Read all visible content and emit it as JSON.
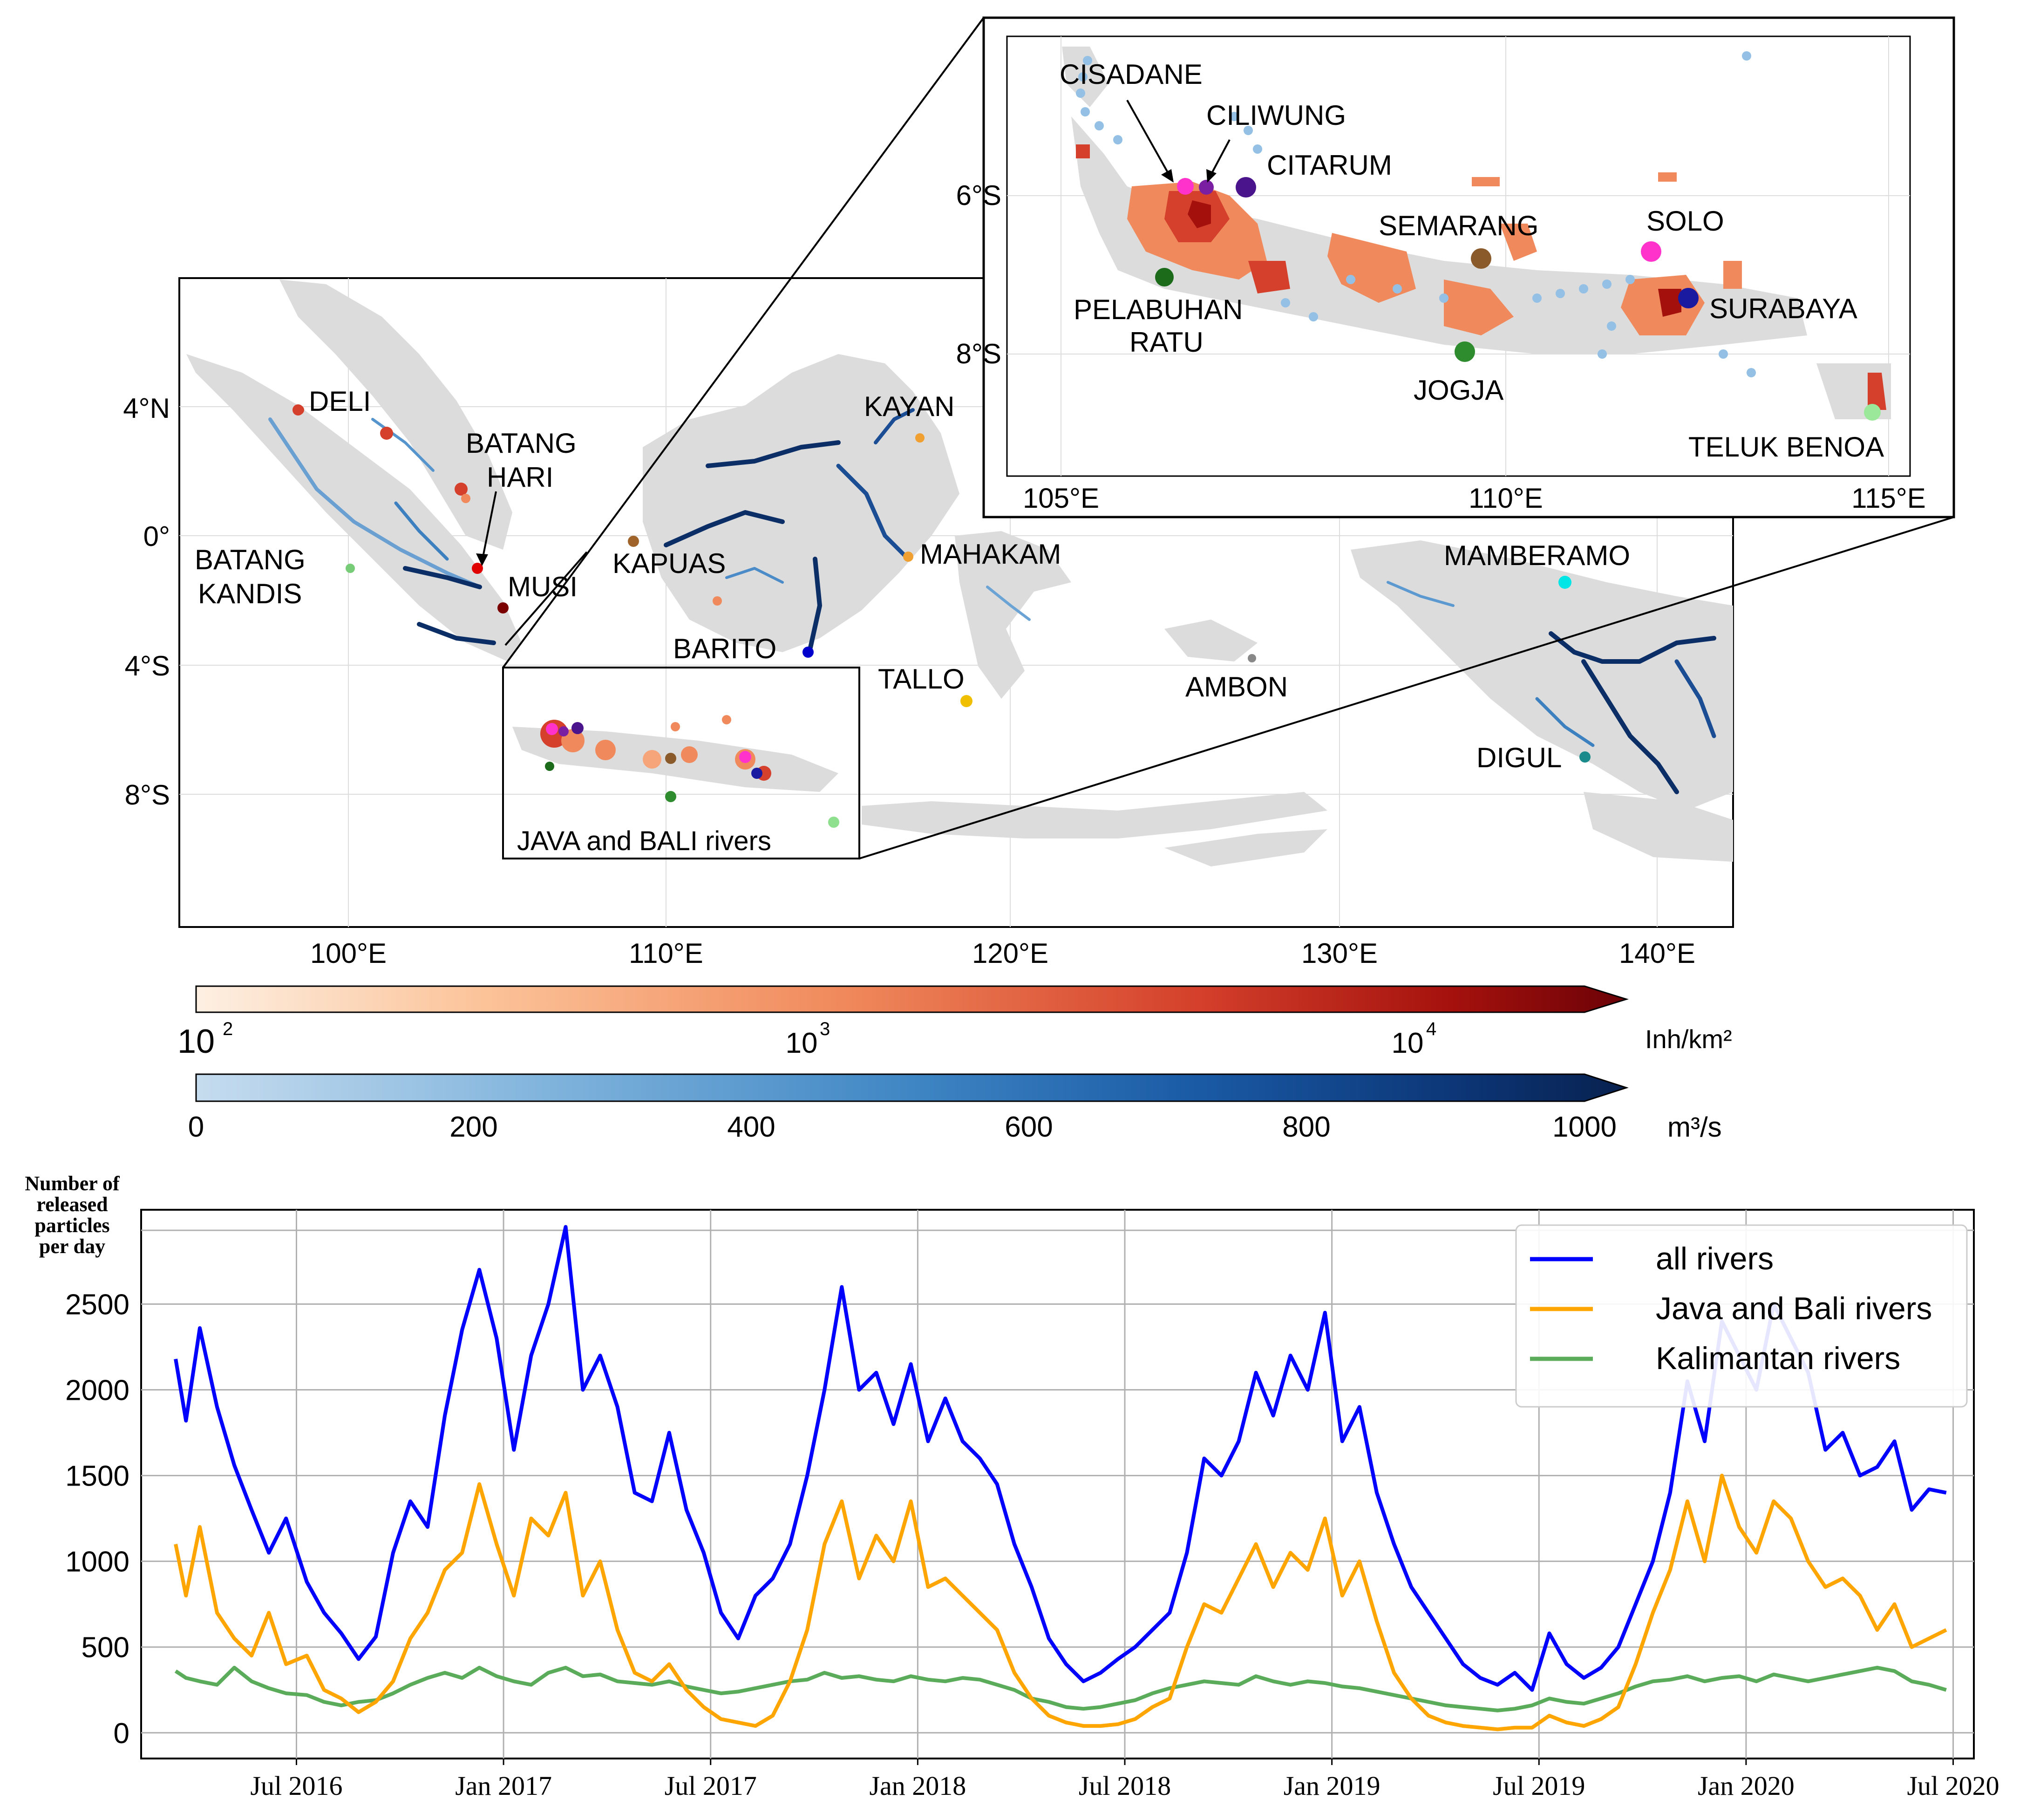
{
  "map": {
    "lat_ticks": [
      "4°N",
      "0°",
      "4°S",
      "8°S"
    ],
    "lon_ticks": [
      "100°E",
      "110°E",
      "120°E",
      "130°E",
      "140°E"
    ],
    "river_labels": [
      "DELI",
      "BATANG",
      "HARI",
      "BATANG",
      "KANDIS",
      "MUSI",
      "KAPUAS",
      "BARITO",
      "KAYAN",
      "MAHAKAM",
      "TALLO",
      "AMBON",
      "MAMBERAMO",
      "DIGUL"
    ],
    "box_label": "JAVA and BALI rivers"
  },
  "inset": {
    "lat_ticks": [
      "6°S",
      "8°S"
    ],
    "lon_ticks": [
      "105°E",
      "110°E",
      "115°E"
    ],
    "labels": [
      "CISADANE",
      "CILIWUNG",
      "CITARUM",
      "SEMARANG",
      "SOLO",
      "PELABUHAN",
      "RATU",
      "SURABAYA",
      "JOGJA",
      "TELUK BENOA"
    ]
  },
  "colorbars": {
    "population": {
      "ticks": [
        "10",
        "10",
        "10"
      ],
      "exps": [
        "2",
        "3",
        "4"
      ],
      "unit": "Inh/km²",
      "colors": [
        "#fdf0e3",
        "#fcc399",
        "#f08a5c",
        "#d4402b",
        "#a4110d",
        "#6b0207"
      ]
    },
    "discharge": {
      "ticks": [
        "0",
        "200",
        "400",
        "600",
        "800",
        "1000"
      ],
      "unit": "m³/s",
      "colors": [
        "#c6dcef",
        "#7fb3dc",
        "#3f86c4",
        "#1a5aa5",
        "#0c3677",
        "#08214f"
      ]
    }
  },
  "chart_data": {
    "type": "line",
    "ylabel": "Number of released particles per day",
    "x_ticks": [
      "Jul 2016",
      "Jan 2017",
      "Jul 2017",
      "Jan 2018",
      "Jul 2018",
      "Jan 2019",
      "Jul 2019",
      "Jan 2020",
      "Jul 2020"
    ],
    "y_ticks": [
      "0",
      "500",
      "1000",
      "1500",
      "2000",
      "2500"
    ],
    "ylim": [
      -150,
      3050
    ],
    "xlim_months": [
      -4.5,
      48.6
    ],
    "legend_position": "top-right",
    "grid": true,
    "series": [
      {
        "name": "all rivers",
        "color": "#0000ff",
        "x_months": [
          -3.5,
          -3.2,
          -2.8,
          -2.3,
          -1.8,
          -1.3,
          -0.8,
          -0.3,
          0.3,
          0.8,
          1.3,
          1.8,
          2.3,
          2.8,
          3.3,
          3.8,
          4.3,
          4.8,
          5.3,
          5.8,
          6.3,
          6.8,
          7.3,
          7.8,
          8.3,
          8.8,
          9.3,
          9.8,
          10.3,
          10.8,
          11.3,
          11.8,
          12.3,
          12.8,
          13.3,
          13.8,
          14.3,
          14.8,
          15.3,
          15.8,
          16.3,
          16.8,
          17.3,
          17.8,
          18.3,
          18.8,
          19.3,
          19.8,
          20.3,
          20.8,
          21.3,
          21.8,
          22.3,
          22.8,
          23.3,
          23.8,
          24.3,
          24.8,
          25.3,
          25.8,
          26.3,
          26.8,
          27.3,
          27.8,
          28.3,
          28.8,
          29.3,
          29.8,
          30.3,
          30.8,
          31.3,
          31.8,
          32.3,
          32.8,
          33.3,
          33.8,
          34.3,
          34.8,
          35.3,
          35.8,
          36.3,
          36.8,
          37.3,
          37.8,
          38.3,
          38.8,
          39.3,
          39.8,
          40.3,
          40.8,
          41.3,
          41.8,
          42.3,
          42.8,
          43.3,
          43.8,
          44.3,
          44.8,
          45.3,
          45.8,
          46.3,
          46.8,
          47.3,
          47.8
        ],
        "values": [
          2180,
          1820,
          2360,
          1900,
          1560,
          1300,
          1050,
          1250,
          880,
          700,
          580,
          430,
          560,
          1050,
          1350,
          1200,
          1850,
          2350,
          2700,
          2300,
          1650,
          2200,
          2500,
          2950,
          2000,
          2200,
          1900,
          1400,
          1350,
          1750,
          1300,
          1050,
          700,
          550,
          800,
          900,
          1100,
          1500,
          2000,
          2600,
          2000,
          2100,
          1800,
          2150,
          1700,
          1950,
          1700,
          1600,
          1450,
          1100,
          850,
          550,
          400,
          300,
          350,
          430,
          500,
          600,
          700,
          1050,
          1600,
          1500,
          1700,
          2100,
          1850,
          2200,
          2000,
          2450,
          1700,
          1900,
          1400,
          1100,
          850,
          700,
          550,
          400,
          320,
          280,
          350,
          250,
          580,
          400,
          320,
          380,
          500,
          750,
          1000,
          1400,
          2050,
          1700,
          2400,
          2200,
          2000,
          2500,
          2300,
          2100,
          1650,
          1750,
          1500,
          1550,
          1700,
          1300,
          1420,
          1400
        ]
      },
      {
        "name": "Java and Bali rivers",
        "color": "#ffa500",
        "x_months": [
          -3.5,
          -3.2,
          -2.8,
          -2.3,
          -1.8,
          -1.3,
          -0.8,
          -0.3,
          0.3,
          0.8,
          1.3,
          1.8,
          2.3,
          2.8,
          3.3,
          3.8,
          4.3,
          4.8,
          5.3,
          5.8,
          6.3,
          6.8,
          7.3,
          7.8,
          8.3,
          8.8,
          9.3,
          9.8,
          10.3,
          10.8,
          11.3,
          11.8,
          12.3,
          12.8,
          13.3,
          13.8,
          14.3,
          14.8,
          15.3,
          15.8,
          16.3,
          16.8,
          17.3,
          17.8,
          18.3,
          18.8,
          19.3,
          19.8,
          20.3,
          20.8,
          21.3,
          21.8,
          22.3,
          22.8,
          23.3,
          23.8,
          24.3,
          24.8,
          25.3,
          25.8,
          26.3,
          26.8,
          27.3,
          27.8,
          28.3,
          28.8,
          29.3,
          29.8,
          30.3,
          30.8,
          31.3,
          31.8,
          32.3,
          32.8,
          33.3,
          33.8,
          34.3,
          34.8,
          35.3,
          35.8,
          36.3,
          36.8,
          37.3,
          37.8,
          38.3,
          38.8,
          39.3,
          39.8,
          40.3,
          40.8,
          41.3,
          41.8,
          42.3,
          42.8,
          43.3,
          43.8,
          44.3,
          44.8,
          45.3,
          45.8,
          46.3,
          46.8,
          47.3,
          47.8
        ],
        "values": [
          1100,
          800,
          1200,
          700,
          550,
          450,
          700,
          400,
          450,
          250,
          200,
          120,
          180,
          300,
          550,
          700,
          950,
          1050,
          1450,
          1100,
          800,
          1250,
          1150,
          1400,
          800,
          1000,
          600,
          350,
          300,
          400,
          250,
          150,
          80,
          60,
          40,
          100,
          300,
          600,
          1100,
          1350,
          900,
          1150,
          1000,
          1350,
          850,
          900,
          800,
          700,
          600,
          350,
          200,
          100,
          60,
          40,
          40,
          50,
          80,
          150,
          200,
          500,
          750,
          700,
          900,
          1100,
          850,
          1050,
          950,
          1250,
          800,
          1000,
          650,
          350,
          200,
          100,
          60,
          40,
          30,
          20,
          30,
          30,
          100,
          60,
          40,
          80,
          150,
          400,
          700,
          950,
          1350,
          1000,
          1500,
          1200,
          1050,
          1350,
          1250,
          1000,
          850,
          900,
          800,
          600,
          750,
          500,
          550,
          600
        ]
      },
      {
        "name": "Kalimantan rivers",
        "color": "#5aab5a",
        "x_months": [
          -3.5,
          -3.2,
          -2.8,
          -2.3,
          -1.8,
          -1.3,
          -0.8,
          -0.3,
          0.3,
          0.8,
          1.3,
          1.8,
          2.3,
          2.8,
          3.3,
          3.8,
          4.3,
          4.8,
          5.3,
          5.8,
          6.3,
          6.8,
          7.3,
          7.8,
          8.3,
          8.8,
          9.3,
          9.8,
          10.3,
          10.8,
          11.3,
          11.8,
          12.3,
          12.8,
          13.3,
          13.8,
          14.3,
          14.8,
          15.3,
          15.8,
          16.3,
          16.8,
          17.3,
          17.8,
          18.3,
          18.8,
          19.3,
          19.8,
          20.3,
          20.8,
          21.3,
          21.8,
          22.3,
          22.8,
          23.3,
          23.8,
          24.3,
          24.8,
          25.3,
          25.8,
          26.3,
          26.8,
          27.3,
          27.8,
          28.3,
          28.8,
          29.3,
          29.8,
          30.3,
          30.8,
          31.3,
          31.8,
          32.3,
          32.8,
          33.3,
          33.8,
          34.3,
          34.8,
          35.3,
          35.8,
          36.3,
          36.8,
          37.3,
          37.8,
          38.3,
          38.8,
          39.3,
          39.8,
          40.3,
          40.8,
          41.3,
          41.8,
          42.3,
          42.8,
          43.3,
          43.8,
          44.3,
          44.8,
          45.3,
          45.8,
          46.3,
          46.8,
          47.3,
          47.8
        ],
        "values": [
          360,
          320,
          300,
          280,
          380,
          300,
          260,
          230,
          220,
          180,
          160,
          180,
          190,
          230,
          280,
          320,
          350,
          320,
          380,
          330,
          300,
          280,
          350,
          380,
          330,
          340,
          300,
          290,
          280,
          300,
          270,
          250,
          230,
          240,
          260,
          280,
          300,
          310,
          350,
          320,
          330,
          310,
          300,
          330,
          310,
          300,
          320,
          310,
          280,
          250,
          200,
          180,
          150,
          140,
          150,
          170,
          190,
          230,
          260,
          280,
          300,
          290,
          280,
          330,
          300,
          280,
          300,
          290,
          270,
          260,
          240,
          220,
          200,
          180,
          160,
          150,
          140,
          130,
          140,
          160,
          200,
          180,
          170,
          200,
          230,
          270,
          300,
          310,
          330,
          300,
          320,
          330,
          300,
          340,
          320,
          300,
          320,
          340,
          360,
          380,
          360,
          300,
          280,
          250
        ]
      }
    ]
  }
}
